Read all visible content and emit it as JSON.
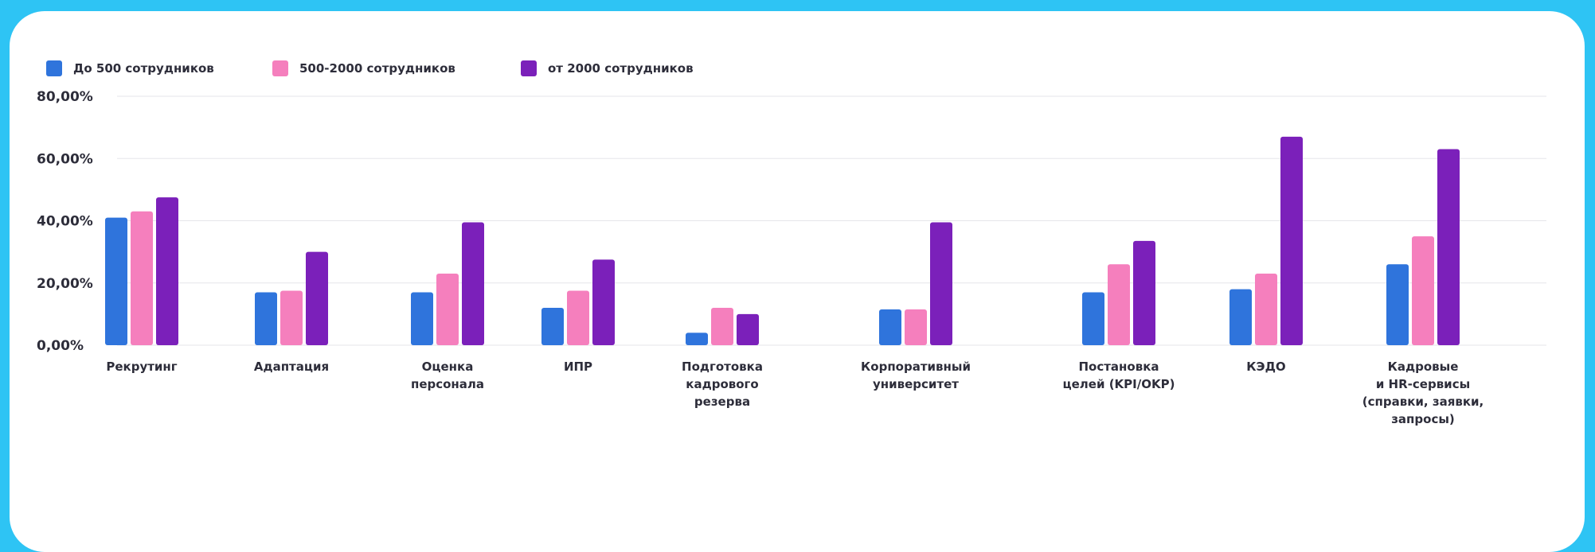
{
  "chart_data": {
    "type": "bar",
    "title": "",
    "xlabel": "",
    "ylabel": "",
    "ylim": [
      0,
      80
    ],
    "y_ticks": [
      "0,00%",
      "20,00%",
      "40,00%",
      "60,00%",
      "80,00%"
    ],
    "y_tick_values": [
      0,
      20,
      40,
      60,
      80
    ],
    "grid": true,
    "legend_placement": "top-left",
    "categories": [
      "Рекрутинг",
      "Адаптация",
      "Оценка\nперсонала",
      "ИПР",
      "Подготовка\nкадрового\nрезерва",
      "Корпоративный\nуниверситет",
      "Постановка\nцелей (KPI/OKP)",
      "КЭДО",
      "Кадровые\nи HR-сервисы\n(справки, заявки,\nзапросы)"
    ],
    "series": [
      {
        "name": "До 500 сотрудников",
        "color": "#2f74dc",
        "values": [
          41,
          17,
          17,
          12,
          4,
          11.5,
          17,
          18,
          26
        ]
      },
      {
        "name": "500-2000 сотрудников",
        "color": "#f57fbd",
        "values": [
          43,
          17.5,
          23,
          17.5,
          12,
          11.5,
          26,
          23,
          35
        ]
      },
      {
        "name": "от 2000 сотрудников",
        "color": "#7b20ba",
        "values": [
          47.5,
          30,
          39.5,
          27.5,
          10,
          39.5,
          33.5,
          67,
          63
        ]
      }
    ]
  }
}
